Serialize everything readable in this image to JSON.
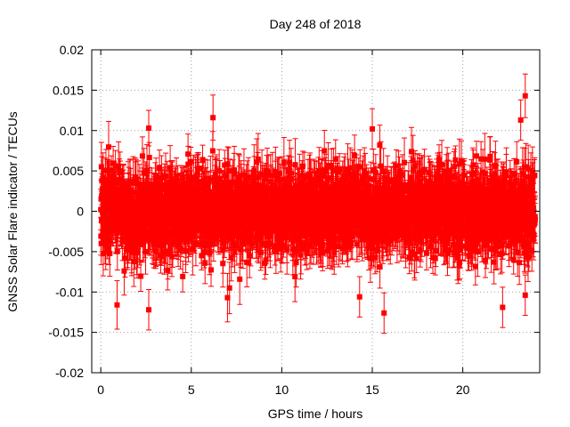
{
  "chart_data": {
    "type": "scatter",
    "title": "Day 248 of 2018",
    "xlabel": "GPS time / hours",
    "ylabel": "GNSS Solar Flare indicator / TECUs",
    "xlim": [
      -0.5,
      24.25
    ],
    "ylim": [
      -0.02,
      0.02
    ],
    "xticks": [
      0,
      5,
      10,
      15,
      20
    ],
    "xtick_labels": [
      "0",
      "5",
      "10",
      "15",
      "20"
    ],
    "yticks": [
      -0.02,
      -0.015,
      -0.01,
      -0.005,
      0,
      0.005,
      0.01,
      0.015,
      0.02
    ],
    "ytick_labels": [
      "-0.02",
      "-0.015",
      "-0.01",
      "-0.005",
      "0",
      "0.005",
      "0.01",
      "0.015",
      "0.02"
    ],
    "grid": true,
    "series_color": "#ff0000",
    "series": [
      {
        "name": "solar-flare-indicator",
        "style": "points-with-errorbars",
        "x_start": 0,
        "x_end": 24,
        "n_points": 2880,
        "typical_spread": 0.004,
        "typical_error": 0.0025,
        "highlights": [
          {
            "x": 23.45,
            "y": 0.0143,
            "err": 0.0027
          },
          {
            "x": 23.2,
            "y": 0.0113,
            "err": 0.0025
          },
          {
            "x": 6.2,
            "y": 0.0116,
            "err": 0.0028
          },
          {
            "x": 2.65,
            "y": 0.0103,
            "err": 0.0022
          },
          {
            "x": 15.0,
            "y": 0.0102,
            "err": 0.0025
          },
          {
            "x": 2.65,
            "y": -0.0122,
            "err": 0.0025
          },
          {
            "x": 22.2,
            "y": -0.0119,
            "err": 0.0025
          },
          {
            "x": 15.65,
            "y": -0.0126,
            "err": 0.0025
          },
          {
            "x": 0.9,
            "y": -0.0116,
            "err": 0.003
          },
          {
            "x": 23.45,
            "y": -0.0104,
            "err": 0.0025
          },
          {
            "x": 7.0,
            "y": -0.0107,
            "err": 0.003
          },
          {
            "x": 14.3,
            "y": -0.0106,
            "err": 0.0025
          }
        ]
      }
    ]
  }
}
